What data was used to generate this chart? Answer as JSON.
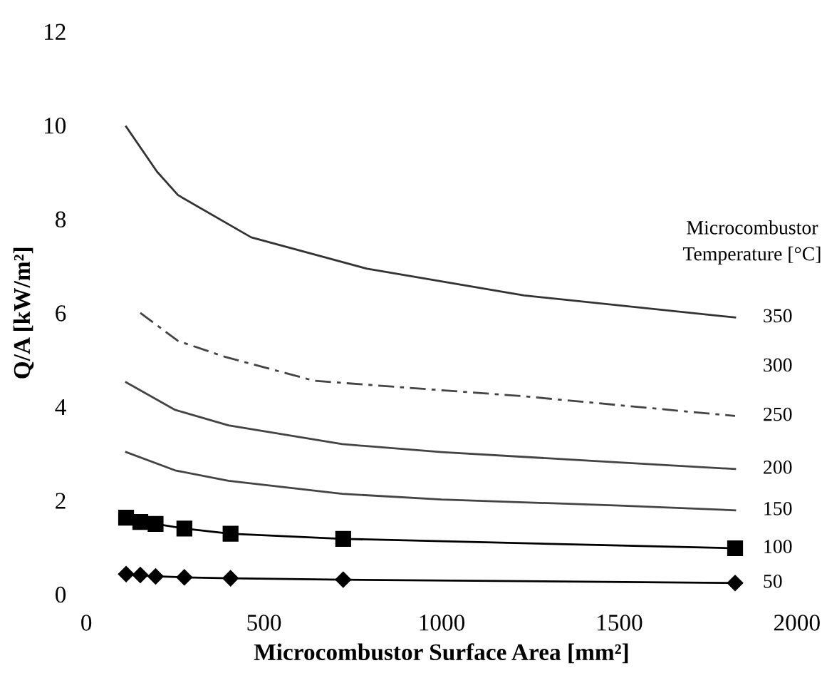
{
  "chart_data": {
    "type": "line",
    "xlabel": "Microcombustor Surface Area [mm²]",
    "ylabel": "Q/A [kW/m²]",
    "xlim": [
      0,
      2000
    ],
    "xticks": [
      0,
      500,
      1000,
      1500,
      2000
    ],
    "ylim": [
      0,
      12
    ],
    "yticks": [
      0,
      2,
      4,
      6,
      8,
      10,
      12
    ],
    "grid": false,
    "legend": false,
    "series": [
      {
        "name": "350",
        "color": "#333333",
        "line_style": "solid",
        "marker": "none",
        "x": [
          112,
          199,
          258,
          464,
          790,
          1232,
          1826
        ],
        "values": [
          9.97,
          9.01,
          8.51,
          7.61,
          6.94,
          6.37,
          5.9
        ]
      },
      {
        "name": "250",
        "color": "#444444",
        "line_style": "dashed",
        "marker": "none",
        "x": [
          152,
          258,
          391,
          642,
          1232,
          1826
        ],
        "values": [
          6.0,
          5.4,
          5.06,
          4.55,
          4.22,
          3.8
        ]
      },
      {
        "name": "200",
        "color": "#444444",
        "line_style": "solid",
        "marker": "none",
        "x": [
          112,
          250,
          400,
          720,
          1000,
          1500,
          1826
        ],
        "values": [
          4.52,
          3.93,
          3.6,
          3.2,
          3.03,
          2.81,
          2.67
        ]
      },
      {
        "name": "150",
        "color": "#444444",
        "line_style": "solid",
        "marker": "none",
        "x": [
          112,
          250,
          400,
          720,
          1000,
          1500,
          1826
        ],
        "values": [
          3.03,
          2.64,
          2.42,
          2.14,
          2.02,
          1.89,
          1.79
        ]
      },
      {
        "name": "100",
        "color": "#000000",
        "line_style": "solid",
        "marker": "square",
        "x": [
          112,
          152,
          195,
          276,
          406,
          723,
          1826
        ],
        "values": [
          1.63,
          1.54,
          1.5,
          1.4,
          1.29,
          1.18,
          0.98
        ]
      },
      {
        "name": "50",
        "color": "#000000",
        "line_style": "solid",
        "marker": "diamond",
        "x": [
          112,
          152,
          195,
          276,
          406,
          723,
          1826
        ],
        "values": [
          0.43,
          0.41,
          0.38,
          0.36,
          0.34,
          0.31,
          0.24
        ]
      }
    ],
    "annotations": [
      "Microcombustor\nTemperature [°C]",
      "300"
    ]
  }
}
